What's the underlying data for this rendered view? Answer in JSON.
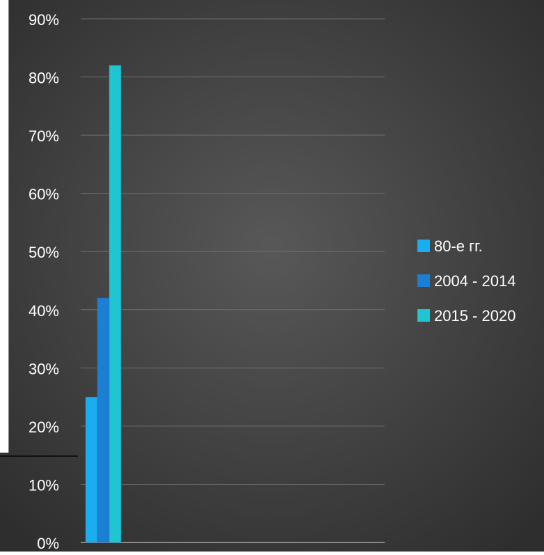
{
  "chart_data": {
    "type": "bar",
    "categories": [
      ""
    ],
    "series": [
      {
        "name": "80-е гг.",
        "values": [
          25
        ],
        "color": "#1aaef0"
      },
      {
        "name": "2004 - 2014",
        "values": [
          42
        ],
        "color": "#1b7fd4"
      },
      {
        "name": "2015 - 2020",
        "values": [
          82
        ],
        "color": "#1fc5d1"
      }
    ],
    "title": "",
    "xlabel": "",
    "ylabel": "",
    "ylim": [
      0,
      90
    ],
    "y_ticks": [
      "0%",
      "10%",
      "20%",
      "30%",
      "40%",
      "50%",
      "60%",
      "70%",
      "80%",
      "90%"
    ],
    "grid": true,
    "legend_position": "right"
  },
  "colors": {
    "background_center": "#585858",
    "background_edge": "#2e2e2e",
    "gridline": "#6e6e6e",
    "text": "#ffffff"
  }
}
